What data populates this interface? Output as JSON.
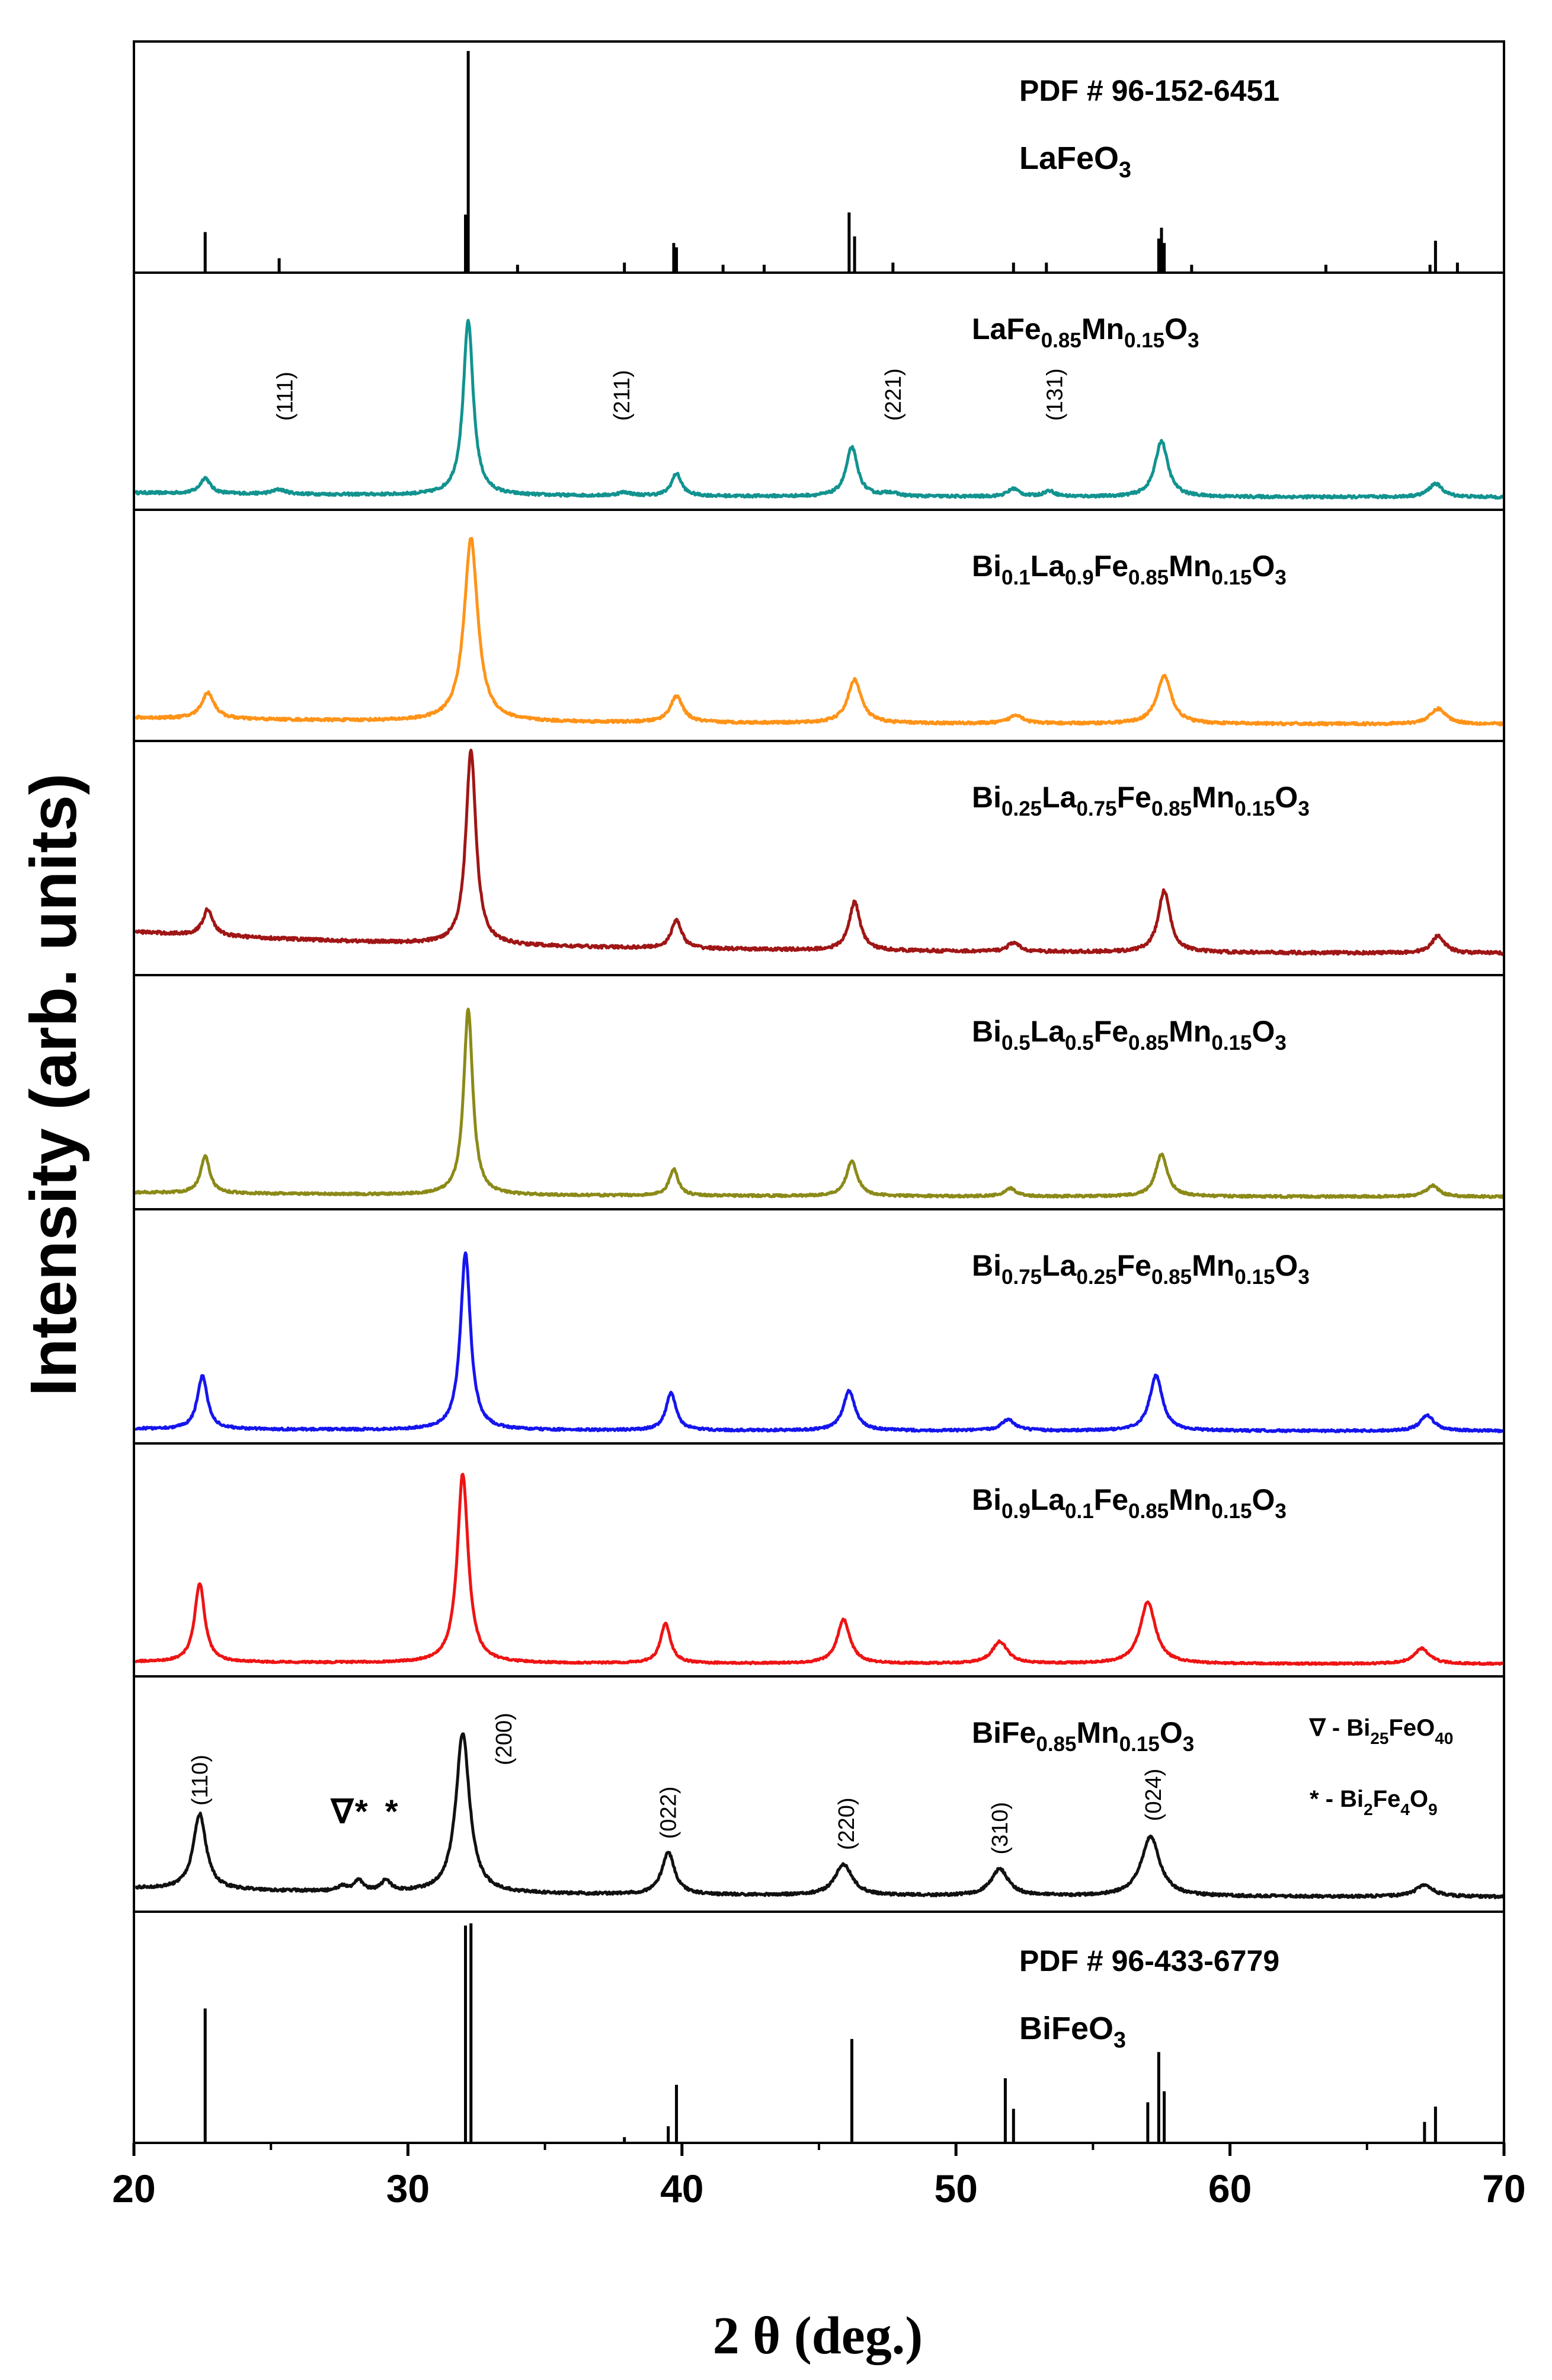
{
  "chart_data": {
    "type": "line",
    "title": "",
    "xlabel": "2 θ (deg.)",
    "ylabel": "Intensity (arb. units)",
    "xlim": [
      20,
      70
    ],
    "xticks": [
      20,
      30,
      40,
      50,
      60,
      70
    ],
    "panels": [
      {
        "kind": "reference",
        "pdf": "PDF # 96-152-6451",
        "label_parts": [
          [
            "LaFeO",
            ""
          ],
          [
            "3",
            "sub"
          ]
        ],
        "sticks": [
          {
            "x": 22.6,
            "h": 0.17
          },
          {
            "x": 25.3,
            "h": 0.05
          },
          {
            "x": 32.1,
            "h": 0.25
          },
          {
            "x": 32.2,
            "h": 1.0
          },
          {
            "x": 34.0,
            "h": 0.02
          },
          {
            "x": 37.9,
            "h": 0.03
          },
          {
            "x": 39.7,
            "h": 0.12
          },
          {
            "x": 39.8,
            "h": 0.1
          },
          {
            "x": 41.5,
            "h": 0.02
          },
          {
            "x": 43.0,
            "h": 0.02
          },
          {
            "x": 46.1,
            "h": 0.26
          },
          {
            "x": 46.3,
            "h": 0.15
          },
          {
            "x": 47.7,
            "h": 0.03
          },
          {
            "x": 52.1,
            "h": 0.03
          },
          {
            "x": 53.3,
            "h": 0.03
          },
          {
            "x": 57.4,
            "h": 0.14
          },
          {
            "x": 57.5,
            "h": 0.19
          },
          {
            "x": 57.6,
            "h": 0.12
          },
          {
            "x": 58.6,
            "h": 0.02
          },
          {
            "x": 63.5,
            "h": 0.02
          },
          {
            "x": 67.3,
            "h": 0.02
          },
          {
            "x": 67.5,
            "h": 0.13
          },
          {
            "x": 68.3,
            "h": 0.03
          }
        ]
      },
      {
        "kind": "pattern",
        "label_parts": [
          [
            "LaFe",
            ""
          ],
          [
            "0.85",
            "sub"
          ],
          [
            "Mn",
            ""
          ],
          [
            "0.15",
            "sub"
          ],
          [
            "O",
            ""
          ],
          [
            "3",
            "sub"
          ]
        ],
        "color": "#12938f",
        "base": 0.04,
        "slope": 0.02,
        "noise": 0.012,
        "peaks": [
          {
            "x": 22.6,
            "h": 0.07,
            "w": 0.22
          },
          {
            "x": 25.3,
            "h": 0.02,
            "w": 0.3
          },
          {
            "x": 32.2,
            "h": 0.78,
            "w": 0.22
          },
          {
            "x": 37.9,
            "h": 0.015,
            "w": 0.3
          },
          {
            "x": 39.8,
            "h": 0.1,
            "w": 0.22
          },
          {
            "x": 46.2,
            "h": 0.22,
            "w": 0.25
          },
          {
            "x": 47.6,
            "h": 0.015,
            "w": 0.3
          },
          {
            "x": 52.1,
            "h": 0.035,
            "w": 0.25
          },
          {
            "x": 53.4,
            "h": 0.025,
            "w": 0.25
          },
          {
            "x": 57.5,
            "h": 0.25,
            "w": 0.28
          },
          {
            "x": 67.5,
            "h": 0.06,
            "w": 0.3
          }
        ],
        "annotations": [
          {
            "text": "(111)",
            "x": 25.5
          },
          {
            "text": "(211)",
            "x": 37.8
          },
          {
            "text": "(221)",
            "x": 47.7
          },
          {
            "text": "(131)",
            "x": 53.6
          }
        ]
      },
      {
        "kind": "pattern",
        "label_parts": [
          [
            "Bi",
            ""
          ],
          [
            "0.1",
            "sub"
          ],
          [
            "La",
            ""
          ],
          [
            "0.9",
            "sub"
          ],
          [
            "Fe",
            ""
          ],
          [
            "0.85",
            "sub"
          ],
          [
            "Mn",
            ""
          ],
          [
            "0.15",
            "sub"
          ],
          [
            "O",
            ""
          ],
          [
            "3",
            "sub"
          ]
        ],
        "color": "#ff9318",
        "base": 0.06,
        "slope": 0.03,
        "noise": 0.012,
        "peaks": [
          {
            "x": 22.7,
            "h": 0.12,
            "w": 0.28
          },
          {
            "x": 32.3,
            "h": 0.84,
            "w": 0.3
          },
          {
            "x": 39.8,
            "h": 0.12,
            "w": 0.28
          },
          {
            "x": 46.3,
            "h": 0.2,
            "w": 0.3
          },
          {
            "x": 52.2,
            "h": 0.04,
            "w": 0.3
          },
          {
            "x": 57.6,
            "h": 0.22,
            "w": 0.32
          },
          {
            "x": 67.6,
            "h": 0.07,
            "w": 0.35
          }
        ],
        "annotations": []
      },
      {
        "kind": "pattern",
        "label_parts": [
          [
            "Bi",
            ""
          ],
          [
            "0.25",
            "sub"
          ],
          [
            "La",
            ""
          ],
          [
            "0.75",
            "sub"
          ],
          [
            "Fe",
            ""
          ],
          [
            "0.85",
            "sub"
          ],
          [
            "Mn",
            ""
          ],
          [
            "0.15",
            "sub"
          ],
          [
            "O",
            ""
          ],
          [
            "3",
            "sub"
          ]
        ],
        "color": "#a01616",
        "base": 0.08,
        "slope": 0.1,
        "noise": 0.014,
        "peaks": [
          {
            "x": 22.7,
            "h": 0.12,
            "w": 0.22
          },
          {
            "x": 32.3,
            "h": 0.88,
            "w": 0.22
          },
          {
            "x": 39.8,
            "h": 0.13,
            "w": 0.22
          },
          {
            "x": 46.3,
            "h": 0.22,
            "w": 0.24
          },
          {
            "x": 52.1,
            "h": 0.04,
            "w": 0.25
          },
          {
            "x": 57.6,
            "h": 0.28,
            "w": 0.26
          },
          {
            "x": 67.6,
            "h": 0.08,
            "w": 0.28
          }
        ],
        "annotations": []
      },
      {
        "kind": "pattern",
        "label_parts": [
          [
            "Bi",
            ""
          ],
          [
            "0.5",
            "sub"
          ],
          [
            "La",
            ""
          ],
          [
            "0.5",
            "sub"
          ],
          [
            "Fe",
            ""
          ],
          [
            "0.85",
            "sub"
          ],
          [
            "Mn",
            ""
          ],
          [
            "0.15",
            "sub"
          ],
          [
            "O",
            ""
          ],
          [
            "3",
            "sub"
          ]
        ],
        "color": "#8b8a18",
        "base": 0.04,
        "slope": 0.02,
        "noise": 0.01,
        "peaks": [
          {
            "x": 22.6,
            "h": 0.17,
            "w": 0.2
          },
          {
            "x": 32.2,
            "h": 0.84,
            "w": 0.2
          },
          {
            "x": 39.7,
            "h": 0.12,
            "w": 0.2
          },
          {
            "x": 46.2,
            "h": 0.16,
            "w": 0.24
          },
          {
            "x": 52.0,
            "h": 0.035,
            "w": 0.25
          },
          {
            "x": 57.5,
            "h": 0.19,
            "w": 0.26
          },
          {
            "x": 67.4,
            "h": 0.05,
            "w": 0.28
          }
        ],
        "annotations": []
      },
      {
        "kind": "pattern",
        "label_parts": [
          [
            "Bi",
            ""
          ],
          [
            "0.75",
            "sub"
          ],
          [
            "La",
            ""
          ],
          [
            "0.25",
            "sub"
          ],
          [
            "Fe",
            ""
          ],
          [
            "0.85",
            "sub"
          ],
          [
            "Mn",
            ""
          ],
          [
            "0.15",
            "sub"
          ],
          [
            "O",
            ""
          ],
          [
            "3",
            "sub"
          ]
        ],
        "color": "#1515ee",
        "base": 0.04,
        "slope": 0.01,
        "noise": 0.01,
        "peaks": [
          {
            "x": 22.5,
            "h": 0.24,
            "w": 0.22
          },
          {
            "x": 32.1,
            "h": 0.8,
            "w": 0.22
          },
          {
            "x": 39.6,
            "h": 0.17,
            "w": 0.22
          },
          {
            "x": 46.1,
            "h": 0.18,
            "w": 0.26
          },
          {
            "x": 51.9,
            "h": 0.05,
            "w": 0.3
          },
          {
            "x": 57.3,
            "h": 0.25,
            "w": 0.28
          },
          {
            "x": 67.2,
            "h": 0.07,
            "w": 0.3
          }
        ],
        "annotations": []
      },
      {
        "kind": "pattern",
        "label_parts": [
          [
            "Bi",
            ""
          ],
          [
            "0.9",
            "sub"
          ],
          [
            "La",
            ""
          ],
          [
            "0.1",
            "sub"
          ],
          [
            "Fe",
            ""
          ],
          [
            "0.85",
            "sub"
          ],
          [
            "Mn",
            ""
          ],
          [
            "0.15",
            "sub"
          ],
          [
            "O",
            ""
          ],
          [
            "3",
            "sub"
          ]
        ],
        "color": "#ee1414",
        "base": 0.04,
        "slope": 0.01,
        "noise": 0.008,
        "peaks": [
          {
            "x": 22.4,
            "h": 0.36,
            "w": 0.22
          },
          {
            "x": 32.0,
            "h": 0.86,
            "w": 0.24
          },
          {
            "x": 39.4,
            "h": 0.18,
            "w": 0.22
          },
          {
            "x": 45.9,
            "h": 0.2,
            "w": 0.28
          },
          {
            "x": 51.6,
            "h": 0.1,
            "w": 0.34
          },
          {
            "x": 57.0,
            "h": 0.28,
            "w": 0.34
          },
          {
            "x": 67.0,
            "h": 0.07,
            "w": 0.34
          }
        ],
        "annotations": []
      },
      {
        "kind": "pattern",
        "label_parts": [
          [
            "BiFe",
            ""
          ],
          [
            "0.85",
            "sub"
          ],
          [
            "Mn",
            ""
          ],
          [
            "0.15",
            "sub"
          ],
          [
            "O",
            ""
          ],
          [
            "3",
            "sub"
          ]
        ],
        "color": "#111111",
        "base": 0.05,
        "slope": 0.04,
        "noise": 0.012,
        "peaks": [
          {
            "x": 22.4,
            "h": 0.34,
            "w": 0.28
          },
          {
            "x": 27.6,
            "h": 0.02,
            "w": 0.2
          },
          {
            "x": 28.2,
            "h": 0.05,
            "w": 0.2
          },
          {
            "x": 29.2,
            "h": 0.05,
            "w": 0.2
          },
          {
            "x": 32.0,
            "h": 0.72,
            "w": 0.3
          },
          {
            "x": 39.5,
            "h": 0.19,
            "w": 0.28
          },
          {
            "x": 45.9,
            "h": 0.14,
            "w": 0.38
          },
          {
            "x": 51.6,
            "h": 0.12,
            "w": 0.38
          },
          {
            "x": 57.1,
            "h": 0.27,
            "w": 0.4
          },
          {
            "x": 67.1,
            "h": 0.05,
            "w": 0.4
          }
        ],
        "annotations": [
          {
            "text": "(110)",
            "x": 22.4
          },
          {
            "text": "(200)",
            "x": 33.5
          },
          {
            "text": "(022)",
            "x": 39.5
          },
          {
            "text": "(220)",
            "x": 46.0
          },
          {
            "text": "(310)",
            "x": 51.6
          },
          {
            "text": "(024)",
            "x": 57.2
          }
        ],
        "markers": [
          {
            "symbol": "∇",
            "x": 27.6
          },
          {
            "symbol": "*",
            "x": 28.3
          },
          {
            "symbol": "*",
            "x": 29.4
          }
        ],
        "legend": [
          {
            "symbol": "∇",
            "parts": [
              [
                " - Bi",
                ""
              ],
              [
                "25",
                "sub"
              ],
              [
                "FeO",
                ""
              ],
              [
                "40",
                "sub"
              ]
            ]
          },
          {
            "symbol": "*",
            "parts": [
              [
                " - Bi",
                ""
              ],
              [
                "2",
                "sub"
              ],
              [
                "Fe",
                ""
              ],
              [
                "4",
                "sub"
              ],
              [
                "O",
                ""
              ],
              [
                "9",
                "sub"
              ]
            ]
          }
        ]
      },
      {
        "kind": "reference",
        "pdf": "PDF # 96-433-6779",
        "label_parts": [
          [
            "BiFeO",
            ""
          ],
          [
            "3",
            "sub"
          ]
        ],
        "sticks": [
          {
            "x": 22.6,
            "h": 0.6
          },
          {
            "x": 32.1,
            "h": 0.98
          },
          {
            "x": 32.3,
            "h": 0.99
          },
          {
            "x": 37.9,
            "h": 0.01
          },
          {
            "x": 39.5,
            "h": 0.06
          },
          {
            "x": 39.8,
            "h": 0.25
          },
          {
            "x": 46.2,
            "h": 0.46
          },
          {
            "x": 51.8,
            "h": 0.28
          },
          {
            "x": 52.1,
            "h": 0.14
          },
          {
            "x": 57.0,
            "h": 0.17
          },
          {
            "x": 57.4,
            "h": 0.4
          },
          {
            "x": 57.6,
            "h": 0.22
          },
          {
            "x": 67.1,
            "h": 0.08
          },
          {
            "x": 67.5,
            "h": 0.15
          }
        ]
      }
    ]
  }
}
